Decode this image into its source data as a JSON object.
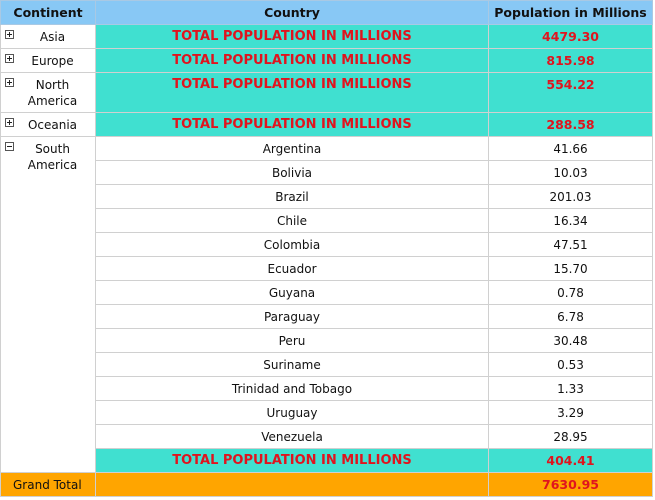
{
  "headers": {
    "continent": "Continent",
    "country": "Country",
    "population": "Population in Millions"
  },
  "summary_label": "TOTAL POPULATION IN MILLIONS",
  "collapsed": [
    {
      "continent": "Asia",
      "total": "4479.30"
    },
    {
      "continent": "Europe",
      "total": "815.98"
    },
    {
      "continent": "North America",
      "total": "554.22"
    },
    {
      "continent": "Oceania",
      "total": "288.58"
    }
  ],
  "expanded": {
    "continent": "South America",
    "countries": [
      {
        "name": "Argentina",
        "value": "41.66"
      },
      {
        "name": "Bolivia",
        "value": "10.03"
      },
      {
        "name": "Brazil",
        "value": "201.03"
      },
      {
        "name": "Chile",
        "value": "16.34"
      },
      {
        "name": "Colombia",
        "value": "47.51"
      },
      {
        "name": "Ecuador",
        "value": "15.70"
      },
      {
        "name": "Guyana",
        "value": "0.78"
      },
      {
        "name": "Paraguay",
        "value": "6.78"
      },
      {
        "name": "Peru",
        "value": "30.48"
      },
      {
        "name": "Suriname",
        "value": "0.53"
      },
      {
        "name": "Trinidad and Tobago",
        "value": "1.33"
      },
      {
        "name": "Uruguay",
        "value": "3.29"
      },
      {
        "name": "Venezuela",
        "value": "28.95"
      }
    ],
    "total": "404.41"
  },
  "grand_total": {
    "label": "Grand Total",
    "value": "7630.95"
  },
  "colors": {
    "header_bg": "#88c8f5",
    "summary_bg": "#40e0d0",
    "summary_text": "#e0141e",
    "grand_bg": "#ffa500"
  },
  "icons": {
    "expand": "plus-square-icon",
    "collapse": "minus-square-icon"
  }
}
